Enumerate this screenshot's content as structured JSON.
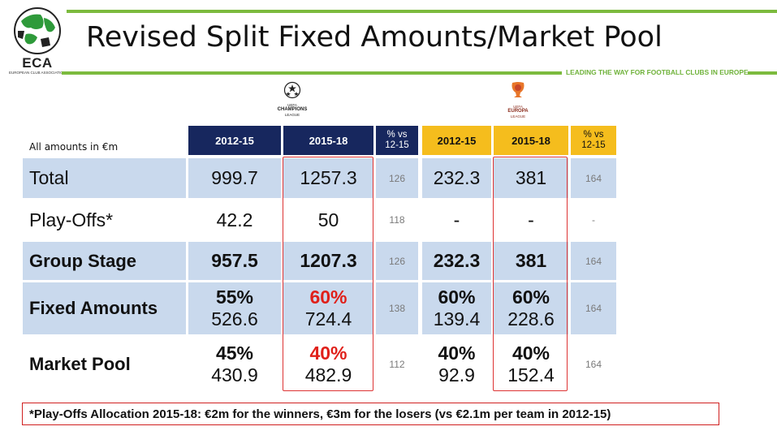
{
  "logo": {
    "acronym": "ECA",
    "subtitle": "EUROPEAN CLUB ASSOCIATION"
  },
  "title": "Revised Split Fixed Amounts/Market Pool",
  "tagline": "LEADING THE WAY FOR FOOTBALL CLUBS IN EUROPE",
  "competitions": {
    "cl": {
      "top": "UEFA",
      "name": "CHAMPIONS",
      "sub": "LEAGUE"
    },
    "el": {
      "top": "UEFA",
      "name": "EUROPA",
      "sub": "LEAGUE"
    }
  },
  "units_label": "All amounts in €m",
  "headers": {
    "cl_2012": "2012-15",
    "cl_2015": "2015-18",
    "cl_pct_top": "% vs",
    "cl_pct_bot": "12-15",
    "el_2012": "2012-15",
    "el_2015": "2015-18",
    "el_pct_top": "% vs",
    "el_pct_bot": "12-15"
  },
  "rows": {
    "total": {
      "label": "Total",
      "cl_2012": "999.7",
      "cl_2015": "1257.3",
      "cl_pct": "126",
      "el_2012": "232.3",
      "el_2015": "381",
      "el_pct": "164"
    },
    "playoffs": {
      "label": "Play-Offs*",
      "cl_2012": "42.2",
      "cl_2015": "50",
      "cl_pct": "118",
      "el_2012": "-",
      "el_2015": "-",
      "el_pct": "-"
    },
    "group": {
      "label": "Group Stage",
      "cl_2012": "957.5",
      "cl_2015": "1207.3",
      "cl_pct": "126",
      "el_2012": "232.3",
      "el_2015": "381",
      "el_pct": "164"
    },
    "fixed": {
      "label": "Fixed Amounts",
      "cl_2012_pct": "55%",
      "cl_2012_amt": "526.6",
      "cl_2015_pct": "60%",
      "cl_2015_amt": "724.4",
      "cl_pct": "138",
      "el_2012_pct": "60%",
      "el_2012_amt": "139.4",
      "el_2015_pct": "60%",
      "el_2015_amt": "228.6",
      "el_pct": "164"
    },
    "market": {
      "label": "Market Pool",
      "cl_2012_pct": "45%",
      "cl_2012_amt": "430.9",
      "cl_2015_pct": "40%",
      "cl_2015_amt": "482.9",
      "cl_pct": "112",
      "el_2012_pct": "40%",
      "el_2012_amt": "92.9",
      "el_2015_pct": "40%",
      "el_2015_amt": "152.4",
      "el_pct": "164"
    }
  },
  "footer_note": "*Play-Offs Allocation 2015-18: €2m for the winners, €3m for the losers (vs €2.1m per team in 2012-15)",
  "colors": {
    "green": "#7cbb3e",
    "navy": "#17275e",
    "gold": "#f5bd1d",
    "rowbg": "#c9d9ed",
    "red": "#e0201a"
  }
}
